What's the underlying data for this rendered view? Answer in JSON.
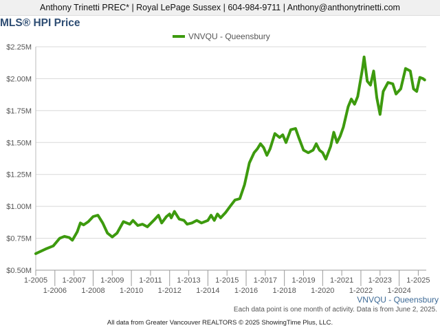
{
  "header": {
    "banner": "Anthony Trinetti PREC* | Royal LePage Sussex | 604-984-9711 | Anthony@anthonytrinetti.com"
  },
  "chart_data": {
    "type": "line",
    "title": "MLS® HPI Price",
    "xlabel": "",
    "ylabel": "",
    "ylim": [
      500000,
      2250000
    ],
    "yticks": [
      500000,
      750000,
      1000000,
      1250000,
      1500000,
      1750000,
      2000000,
      2250000
    ],
    "ytick_labels": [
      "$0.50M",
      "$0.75M",
      "$1.00M",
      "$1.25M",
      "$1.50M",
      "$1.75M",
      "$2.00M",
      "$2.25M"
    ],
    "xlim": [
      "2005-01",
      "2025-06"
    ],
    "xtick_labels": [
      "1-2005",
      "1-2006",
      "1-2007",
      "1-2008",
      "1-2009",
      "1-2010",
      "1-2011",
      "1-2012",
      "1-2013",
      "1-2014",
      "1-2015",
      "1-2016",
      "1-2017",
      "1-2018",
      "1-2019",
      "1-2020",
      "1-2021",
      "1-2022",
      "1-2023",
      "1-2024",
      "1-2025"
    ],
    "grid": true,
    "legend": "top-center",
    "color": "#3d9a0e",
    "series": [
      {
        "name": "VNVQU - Queensbury",
        "points": [
          [
            "2005-01",
            630000
          ],
          [
            "2005-07",
            665000
          ],
          [
            "2005-12",
            690000
          ],
          [
            "2006-04",
            750000
          ],
          [
            "2006-07",
            765000
          ],
          [
            "2006-10",
            755000
          ],
          [
            "2006-12",
            735000
          ],
          [
            "2007-03",
            800000
          ],
          [
            "2007-05",
            870000
          ],
          [
            "2007-07",
            855000
          ],
          [
            "2007-10",
            880000
          ],
          [
            "2008-01",
            920000
          ],
          [
            "2008-04",
            930000
          ],
          [
            "2008-07",
            870000
          ],
          [
            "2008-10",
            790000
          ],
          [
            "2009-01",
            760000
          ],
          [
            "2009-04",
            790000
          ],
          [
            "2009-08",
            880000
          ],
          [
            "2009-12",
            860000
          ],
          [
            "2010-02",
            890000
          ],
          [
            "2010-05",
            850000
          ],
          [
            "2010-08",
            860000
          ],
          [
            "2010-11",
            840000
          ],
          [
            "2011-03",
            890000
          ],
          [
            "2011-06",
            930000
          ],
          [
            "2011-08",
            870000
          ],
          [
            "2011-11",
            920000
          ],
          [
            "2012-01",
            940000
          ],
          [
            "2012-02",
            910000
          ],
          [
            "2012-04",
            960000
          ],
          [
            "2012-07",
            900000
          ],
          [
            "2012-10",
            890000
          ],
          [
            "2012-12",
            860000
          ],
          [
            "2013-03",
            870000
          ],
          [
            "2013-06",
            890000
          ],
          [
            "2013-09",
            870000
          ],
          [
            "2014-01",
            890000
          ],
          [
            "2014-03",
            930000
          ],
          [
            "2014-05",
            890000
          ],
          [
            "2014-07",
            940000
          ],
          [
            "2014-09",
            910000
          ],
          [
            "2014-12",
            950000
          ],
          [
            "2015-03",
            1000000
          ],
          [
            "2015-06",
            1050000
          ],
          [
            "2015-09",
            1060000
          ],
          [
            "2015-12",
            1170000
          ],
          [
            "2016-03",
            1340000
          ],
          [
            "2016-06",
            1420000
          ],
          [
            "2016-08",
            1450000
          ],
          [
            "2016-10",
            1490000
          ],
          [
            "2016-12",
            1460000
          ],
          [
            "2017-02",
            1400000
          ],
          [
            "2017-04",
            1450000
          ],
          [
            "2017-07",
            1570000
          ],
          [
            "2017-10",
            1540000
          ],
          [
            "2017-12",
            1560000
          ],
          [
            "2018-02",
            1500000
          ],
          [
            "2018-05",
            1600000
          ],
          [
            "2018-08",
            1610000
          ],
          [
            "2018-10",
            1540000
          ],
          [
            "2019-01",
            1440000
          ],
          [
            "2019-04",
            1420000
          ],
          [
            "2019-07",
            1440000
          ],
          [
            "2019-09",
            1490000
          ],
          [
            "2019-11",
            1440000
          ],
          [
            "2020-01",
            1420000
          ],
          [
            "2020-03",
            1370000
          ],
          [
            "2020-06",
            1470000
          ],
          [
            "2020-08",
            1580000
          ],
          [
            "2020-10",
            1500000
          ],
          [
            "2020-12",
            1550000
          ],
          [
            "2021-02",
            1620000
          ],
          [
            "2021-05",
            1780000
          ],
          [
            "2021-07",
            1840000
          ],
          [
            "2021-09",
            1800000
          ],
          [
            "2021-11",
            1860000
          ],
          [
            "2022-02",
            2080000
          ],
          [
            "2022-03",
            2170000
          ],
          [
            "2022-05",
            1980000
          ],
          [
            "2022-07",
            1950000
          ],
          [
            "2022-09",
            2060000
          ],
          [
            "2022-11",
            1850000
          ],
          [
            "2023-01",
            1720000
          ],
          [
            "2023-03",
            1900000
          ],
          [
            "2023-06",
            1970000
          ],
          [
            "2023-09",
            1960000
          ],
          [
            "2023-11",
            1880000
          ],
          [
            "2024-02",
            1920000
          ],
          [
            "2024-05",
            2080000
          ],
          [
            "2024-08",
            2060000
          ],
          [
            "2024-10",
            1920000
          ],
          [
            "2024-12",
            1900000
          ],
          [
            "2025-02",
            2010000
          ],
          [
            "2025-04",
            2000000
          ],
          [
            "2025-05",
            1990000
          ]
        ]
      }
    ]
  },
  "footer": {
    "note": "Each data point is one month of activity. Data is from June 2, 2025.",
    "source_label": "VNVQU - Queensbury",
    "copyright": "All data from Greater Vancouver REALTORS © 2025 ShowingTime Plus, LLC."
  }
}
